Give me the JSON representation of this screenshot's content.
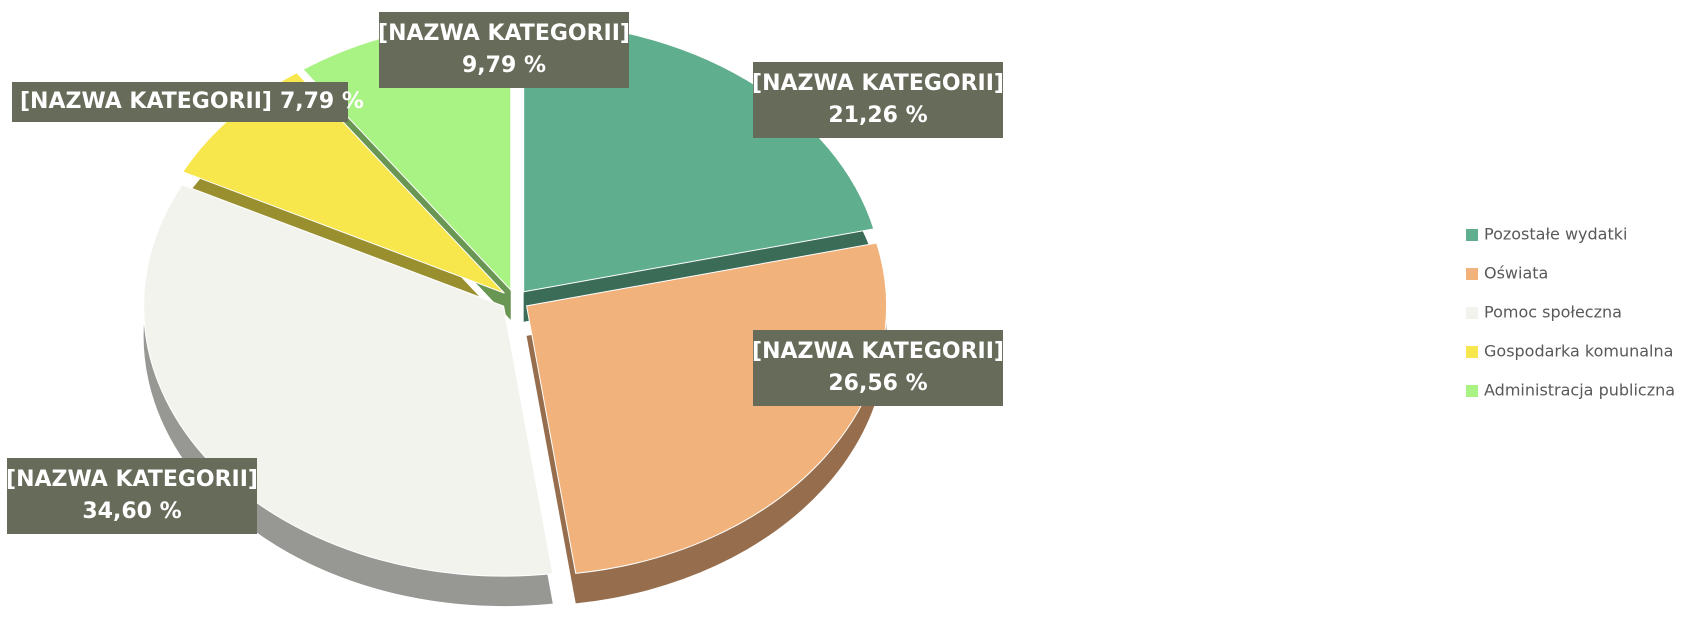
{
  "chart_data": {
    "type": "pie",
    "categories": [
      "Pozostałe wydatki",
      "Oświata",
      "Pomoc społeczna",
      "Gospodarka komunalna",
      "Administracja publiczna"
    ],
    "values": [
      21.26,
      26.56,
      34.6,
      7.79,
      9.79
    ],
    "value_labels": [
      "21,26 %",
      "26,56 %",
      "34,60 %",
      "7,79 %",
      "9,79 %"
    ],
    "data_label_names": [
      "[NAZWA KATEGORII]",
      "[NAZWA KATEGORII]",
      "[NAZWA KATEGORII]",
      "[NAZWA KATEGORII]",
      "[NAZWA KATEGORII]"
    ],
    "colors": [
      "#5fae8e",
      "#f2b27c",
      "#f3f3ee",
      "#f7e64c",
      "#a9f284"
    ],
    "legend": "right"
  }
}
